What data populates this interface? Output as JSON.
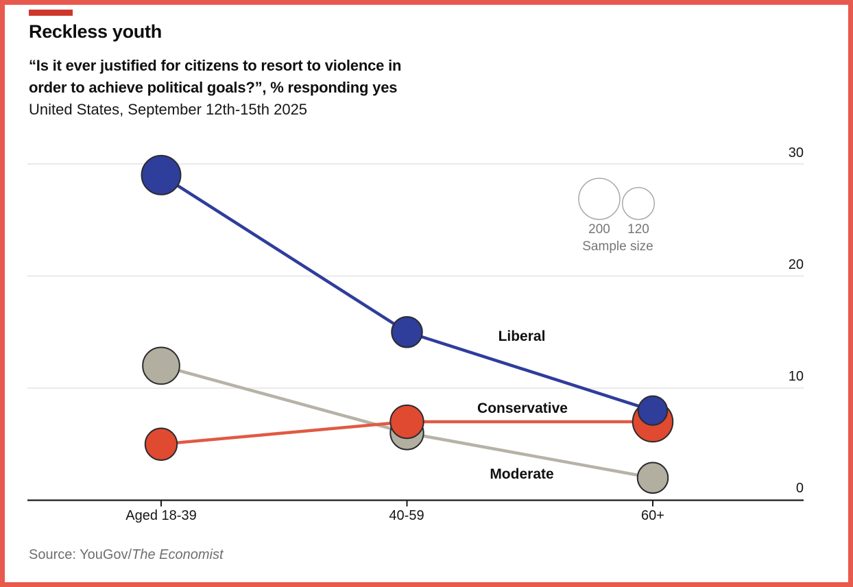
{
  "page": {
    "frame_color": "#e8594e",
    "accent_bar_color": "#cf372c",
    "background": "#ffffff"
  },
  "header": {
    "title": "Reckless youth",
    "subtitle_line1": "“Is it ever justified for citizens to resort to violence in",
    "subtitle_line2": "order to achieve political goals?”, % responding yes",
    "dateline": "United States, September 12th-15th 2025"
  },
  "source": {
    "prefix": "Source: YouGov/",
    "publication": "The Economist"
  },
  "chart_data": {
    "type": "line",
    "subtype": "bubble-line",
    "title": "Reckless youth",
    "question": "Is it ever justified for citizens to resort to violence in order to achieve political goals?",
    "unit": "% responding yes",
    "categories": [
      "Aged 18-39",
      "40-59",
      "60+"
    ],
    "y_ticks": [
      0,
      10,
      20,
      30
    ],
    "ylim": [
      0,
      32
    ],
    "grid": true,
    "axis_color": "#1a1a1a",
    "gridline_color": "#e3e3e3",
    "series": [
      {
        "name": "Liberal",
        "color": "#2f3d9b",
        "line_color": "#2f3d9b",
        "values": [
          29,
          15,
          8
        ],
        "sample_sizes": [
          180,
          110,
          100
        ]
      },
      {
        "name": "Conservative",
        "color": "#df4a30",
        "line_color": "#e05a44",
        "values": [
          5,
          7,
          7
        ],
        "sample_sizes": [
          120,
          130,
          190
        ]
      },
      {
        "name": "Moderate",
        "color": "#b2aea0",
        "line_color": "#b7b2a7",
        "values": [
          12,
          6,
          2
        ],
        "sample_sizes": [
          160,
          130,
          110
        ]
      }
    ],
    "size_legend": {
      "title": "Sample size",
      "items": [
        200,
        120
      ]
    }
  }
}
